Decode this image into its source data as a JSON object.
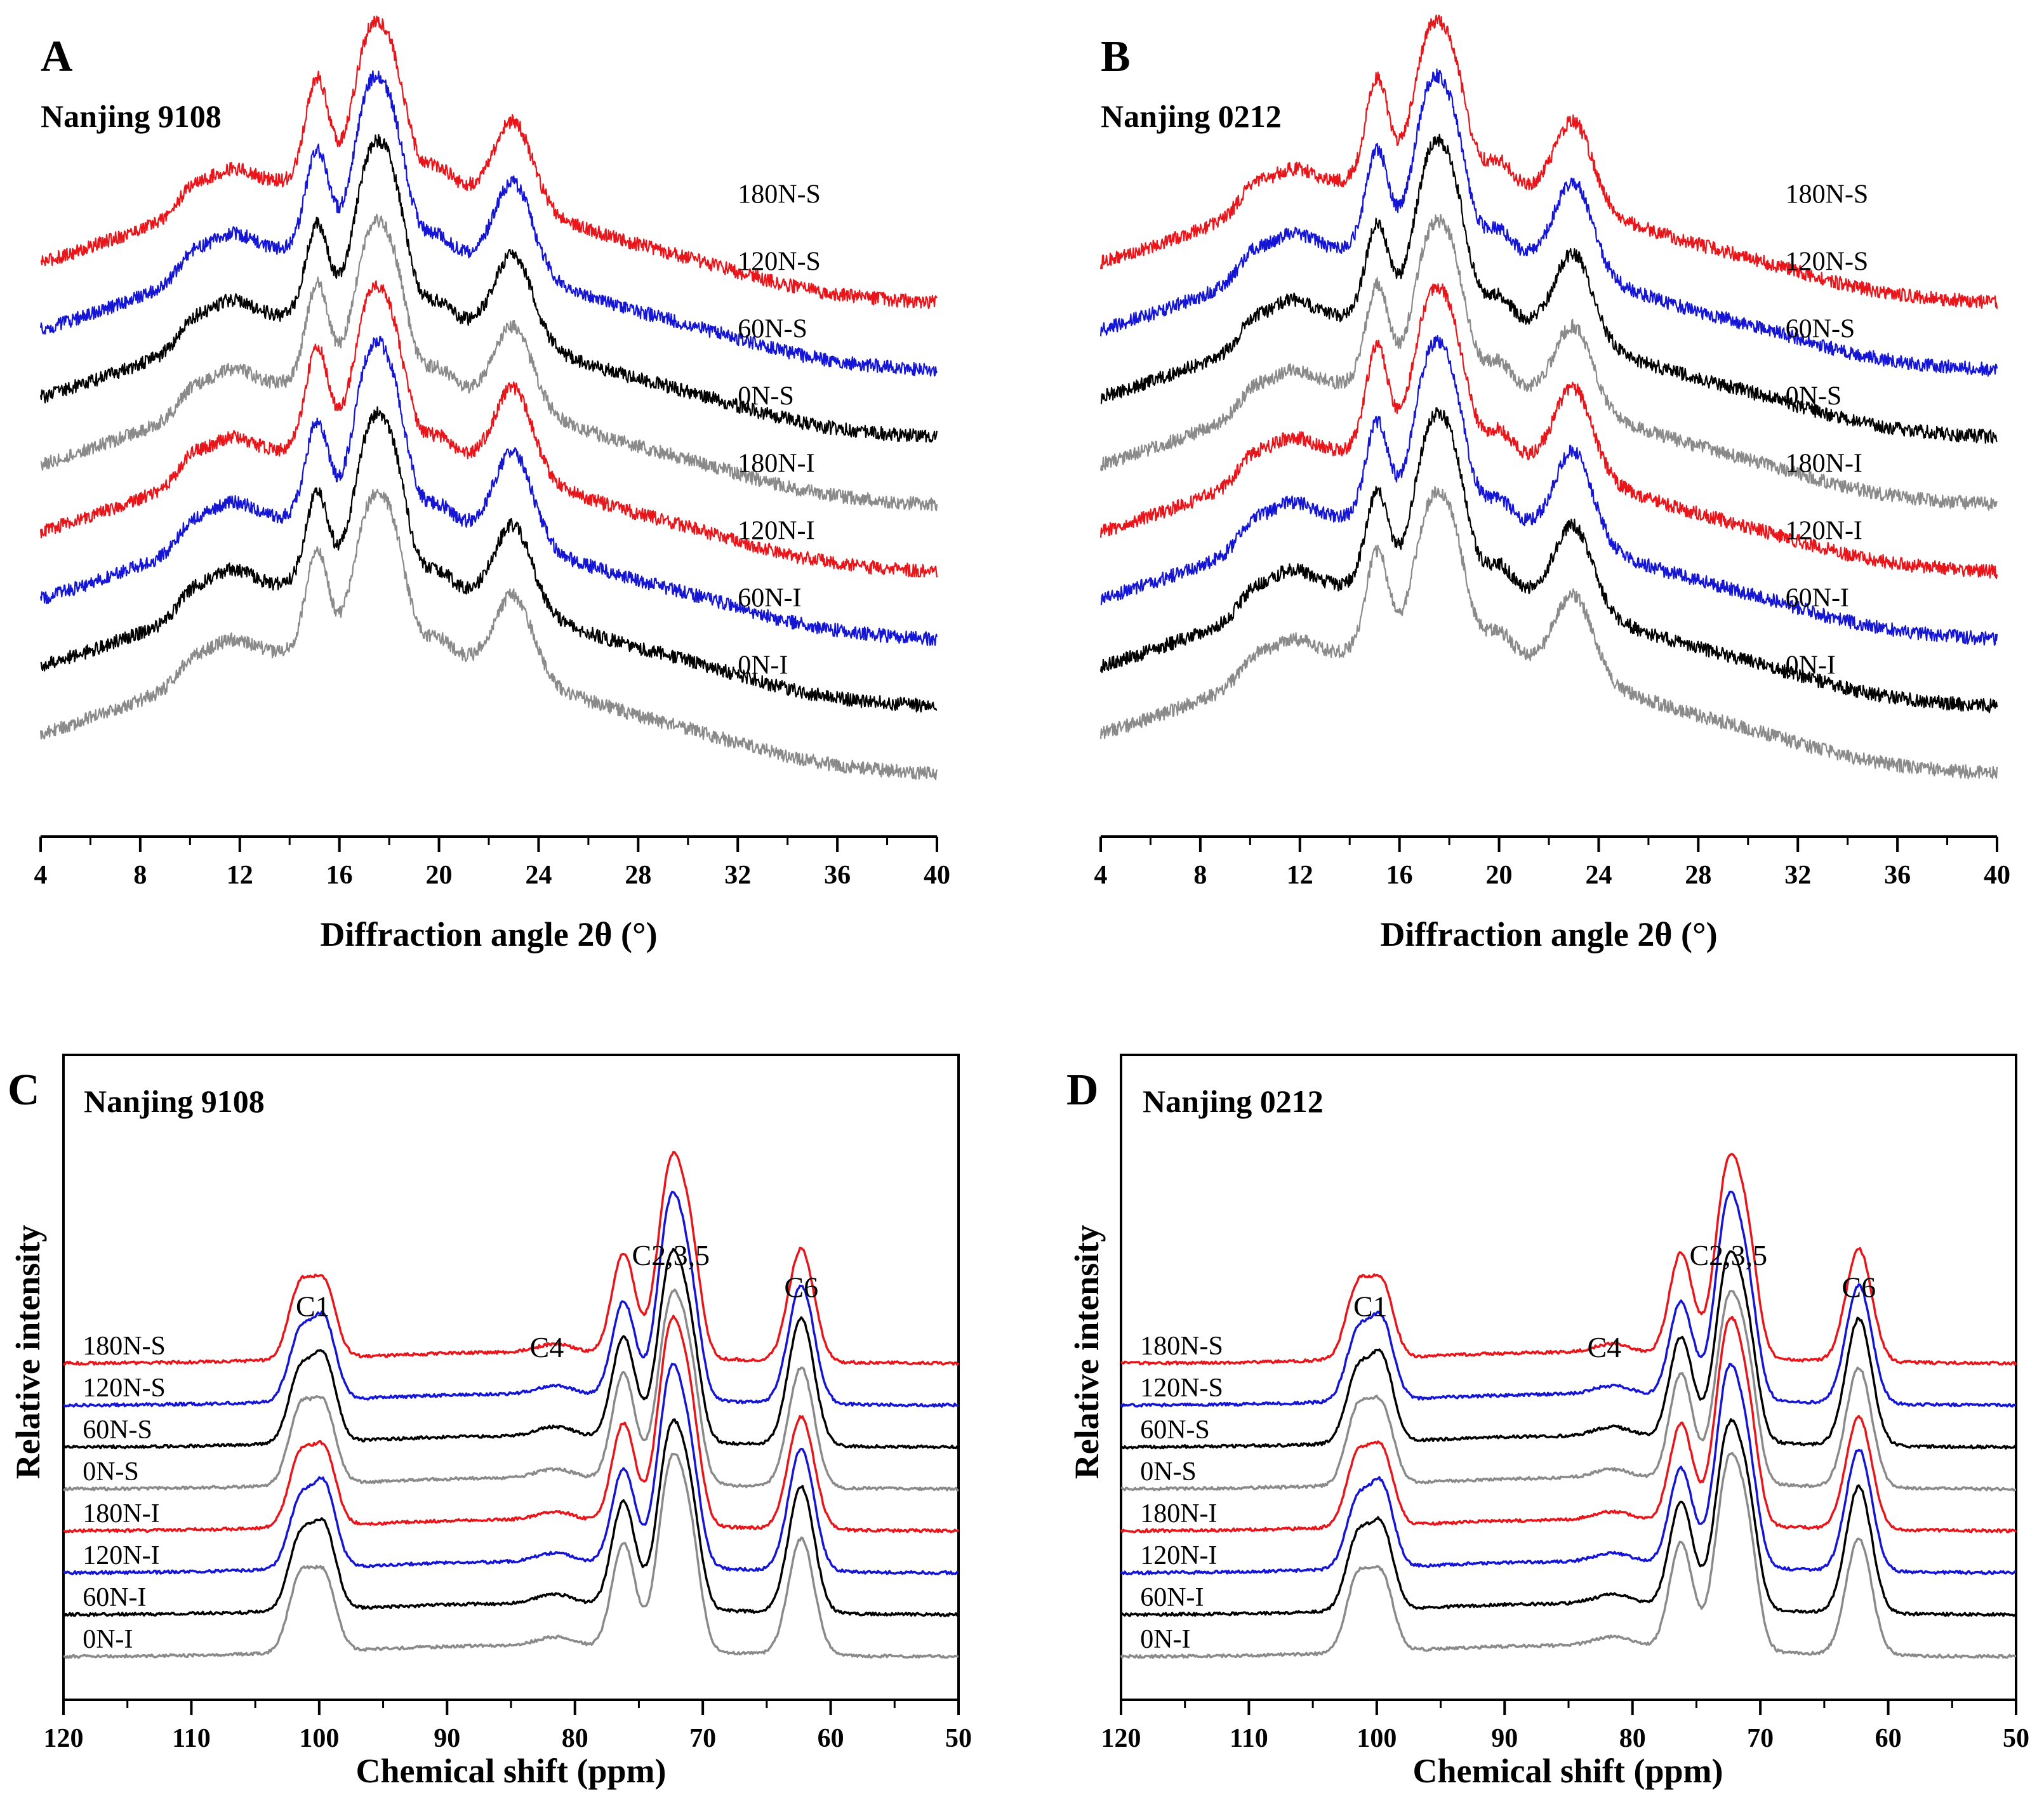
{
  "colors": {
    "S180": "#e8161b",
    "S120": "#1515d6",
    "S60": "#000000",
    "S0": "#8a8a8a"
  },
  "chart_data": [
    {
      "id": "A",
      "type": "line",
      "panel_letter": "A",
      "title": "Nanjing 9108",
      "xlabel": "Diffraction angle 2θ (°)",
      "ylabel": "",
      "xlim": [
        4,
        40
      ],
      "xticks": [
        4,
        8,
        12,
        16,
        20,
        24,
        28,
        32,
        36,
        40
      ],
      "peaks": [
        {
          "x": 10.0,
          "a": 0.1,
          "w": 0.5
        },
        {
          "x": 11.5,
          "a": 0.2,
          "w": 1.0
        },
        {
          "x": 15.1,
          "a": 0.62,
          "w": 0.45
        },
        {
          "x": 17.1,
          "a": 0.78,
          "w": 0.6
        },
        {
          "x": 18.1,
          "a": 0.72,
          "w": 0.6
        },
        {
          "x": 20.0,
          "a": 0.1,
          "w": 0.5
        },
        {
          "x": 23.0,
          "a": 0.55,
          "w": 0.75
        },
        {
          "x": 30.5,
          "a": 0.05,
          "w": 2.5
        }
      ],
      "baseline": {
        "from": 0.15,
        "hump_center": 17,
        "hump_height": 0.85,
        "hump_width": 8.5
      },
      "series": [
        {
          "name": "180N-S",
          "color": "#e8161b",
          "offset": 7,
          "label_x": 32
        },
        {
          "name": "120N-S",
          "color": "#1515d6",
          "offset": 6,
          "label_x": 32
        },
        {
          "name": "60N-S",
          "color": "#000000",
          "offset": 5,
          "label_x": 32
        },
        {
          "name": "0N-S",
          "color": "#8a8a8a",
          "offset": 4,
          "label_x": 32
        },
        {
          "name": "180N-I",
          "color": "#e8161b",
          "offset": 3,
          "label_x": 32
        },
        {
          "name": "120N-I",
          "color": "#1515d6",
          "offset": 2,
          "label_x": 32
        },
        {
          "name": "60N-I",
          "color": "#000000",
          "offset": 1,
          "label_x": 32
        },
        {
          "name": "0N-I",
          "color": "#8a8a8a",
          "offset": 0,
          "label_x": 32
        }
      ],
      "annotations": []
    },
    {
      "id": "B",
      "type": "line",
      "panel_letter": "B",
      "title": "Nanjing 0212",
      "xlabel": "Diffraction angle 2θ (°)",
      "ylabel": "",
      "xlim": [
        4,
        40
      ],
      "xticks": [
        4,
        8,
        12,
        16,
        20,
        24,
        28,
        32,
        36,
        40
      ],
      "peaks": [
        {
          "x": 10.0,
          "a": 0.1,
          "w": 0.5
        },
        {
          "x": 11.5,
          "a": 0.2,
          "w": 1.0
        },
        {
          "x": 15.1,
          "a": 0.62,
          "w": 0.45
        },
        {
          "x": 17.1,
          "a": 0.78,
          "w": 0.6
        },
        {
          "x": 18.1,
          "a": 0.72,
          "w": 0.6
        },
        {
          "x": 20.0,
          "a": 0.14,
          "w": 0.5
        },
        {
          "x": 23.0,
          "a": 0.55,
          "w": 0.75
        },
        {
          "x": 30.5,
          "a": 0.05,
          "w": 2.5
        }
      ],
      "baseline": {
        "from": 0.15,
        "hump_center": 17,
        "hump_height": 0.85,
        "hump_width": 8.5
      },
      "series": [
        {
          "name": "180N-S",
          "color": "#e8161b",
          "offset": 7,
          "label_x": 31.5
        },
        {
          "name": "120N-S",
          "color": "#1515d6",
          "offset": 6,
          "label_x": 31.5
        },
        {
          "name": "60N-S",
          "color": "#000000",
          "offset": 5,
          "label_x": 31.5
        },
        {
          "name": "0N-S",
          "color": "#8a8a8a",
          "offset": 4,
          "label_x": 31.5
        },
        {
          "name": "180N-I",
          "color": "#e8161b",
          "offset": 3,
          "label_x": 31.5
        },
        {
          "name": "120N-I",
          "color": "#1515d6",
          "offset": 2,
          "label_x": 31.5
        },
        {
          "name": "60N-I",
          "color": "#000000",
          "offset": 1,
          "label_x": 31.5
        },
        {
          "name": "0N-I",
          "color": "#8a8a8a",
          "offset": 0,
          "label_x": 31.5
        }
      ],
      "annotations": []
    },
    {
      "id": "C",
      "type": "line",
      "panel_letter": "C",
      "title": "Nanjing 9108",
      "xlabel": "Chemical  shift (ppm)",
      "ylabel": "Relative intensity",
      "xlim": [
        120,
        50
      ],
      "xticks": [
        120,
        110,
        100,
        90,
        80,
        70,
        60,
        50
      ],
      "peaks": [
        {
          "x": 101.5,
          "a": 0.38,
          "w": 0.9
        },
        {
          "x": 99.6,
          "a": 0.42,
          "w": 0.9
        },
        {
          "x": 81.5,
          "a": 0.05,
          "w": 1.5
        },
        {
          "x": 76.2,
          "a": 0.55,
          "w": 0.9
        },
        {
          "x": 72.5,
          "a": 1.0,
          "w": 1.0
        },
        {
          "x": 70.9,
          "a": 0.45,
          "w": 0.8
        },
        {
          "x": 62.3,
          "a": 0.65,
          "w": 1.0
        }
      ],
      "baseline": {
        "from": 0,
        "hump_center": 85,
        "hump_height": 0.06,
        "hump_width": 12
      },
      "series": [
        {
          "name": "180N-S",
          "color": "#e8161b",
          "offset": 7,
          "label_x": 118.5
        },
        {
          "name": "120N-S",
          "color": "#1515d6",
          "offset": 6,
          "label_x": 118.5
        },
        {
          "name": "60N-S",
          "color": "#000000",
          "offset": 5,
          "label_x": 118.5
        },
        {
          "name": "0N-S",
          "color": "#8a8a8a",
          "offset": 4,
          "label_x": 118.5
        },
        {
          "name": "180N-I",
          "color": "#e8161b",
          "offset": 3,
          "label_x": 118.5
        },
        {
          "name": "120N-I",
          "color": "#1515d6",
          "offset": 2,
          "label_x": 118.5
        },
        {
          "name": "60N-I",
          "color": "#000000",
          "offset": 1,
          "label_x": 118.5
        },
        {
          "name": "0N-I",
          "color": "#8a8a8a",
          "offset": 0,
          "label_x": 118.5
        }
      ],
      "annotations": [
        {
          "text": "C1",
          "x": 100.5,
          "y": 8.13
        },
        {
          "text": "C4",
          "x": 82.2,
          "y": 7.15
        },
        {
          "text": "C2,3,5",
          "x": 72.5,
          "y": 9.35
        },
        {
          "text": "C6",
          "x": 62.3,
          "y": 8.58
        }
      ]
    },
    {
      "id": "D",
      "type": "line",
      "panel_letter": "D",
      "title": "Nanjing 0212",
      "xlabel": "Chemical  shift (ppm)",
      "ylabel": "Relative intensity",
      "xlim": [
        120,
        50
      ],
      "xticks": [
        120,
        110,
        100,
        90,
        80,
        70,
        60,
        50
      ],
      "peaks": [
        {
          "x": 101.5,
          "a": 0.38,
          "w": 0.9
        },
        {
          "x": 99.6,
          "a": 0.42,
          "w": 0.9
        },
        {
          "x": 81.5,
          "a": 0.05,
          "w": 1.5
        },
        {
          "x": 76.2,
          "a": 0.55,
          "w": 0.9
        },
        {
          "x": 72.5,
          "a": 1.0,
          "w": 1.0
        },
        {
          "x": 70.9,
          "a": 0.45,
          "w": 0.8
        },
        {
          "x": 62.3,
          "a": 0.65,
          "w": 1.0
        }
      ],
      "baseline": {
        "from": 0,
        "hump_center": 85,
        "hump_height": 0.06,
        "hump_width": 12
      },
      "series": [
        {
          "name": "180N-S",
          "color": "#e8161b",
          "offset": 7,
          "label_x": 118.5
        },
        {
          "name": "120N-S",
          "color": "#1515d6",
          "offset": 6,
          "label_x": 118.5
        },
        {
          "name": "60N-S",
          "color": "#000000",
          "offset": 5,
          "label_x": 118.5
        },
        {
          "name": "0N-S",
          "color": "#8a8a8a",
          "offset": 4,
          "label_x": 118.5
        },
        {
          "name": "180N-I",
          "color": "#e8161b",
          "offset": 3,
          "label_x": 118.5
        },
        {
          "name": "120N-I",
          "color": "#1515d6",
          "offset": 2,
          "label_x": 118.5
        },
        {
          "name": "60N-I",
          "color": "#000000",
          "offset": 1,
          "label_x": 118.5
        },
        {
          "name": "0N-I",
          "color": "#8a8a8a",
          "offset": 0,
          "label_x": 118.5
        }
      ],
      "annotations": [
        {
          "text": "C1",
          "x": 100.5,
          "y": 8.13
        },
        {
          "text": "C4",
          "x": 82.2,
          "y": 7.15
        },
        {
          "text": "C2,3,5",
          "x": 72.5,
          "y": 9.35
        },
        {
          "text": "C6",
          "x": 62.3,
          "y": 8.58
        }
      ]
    }
  ]
}
